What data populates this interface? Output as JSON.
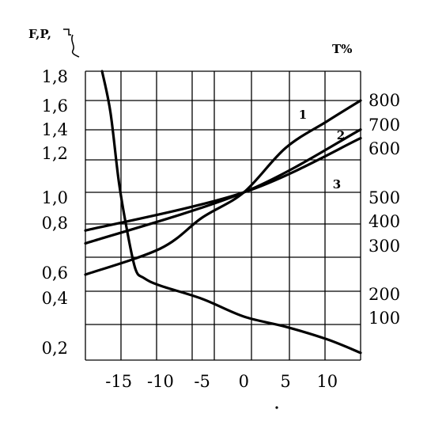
{
  "chart_data": {
    "type": "line",
    "left_axis_title": "F,P,",
    "right_axis_title": "T%",
    "x_ticks": [
      "-15",
      "-10",
      "-5",
      "0",
      "5",
      "10"
    ],
    "x_tick_values": [
      -15,
      -10,
      -5,
      0,
      5,
      10
    ],
    "left_ticks": [
      "1,8",
      "1,6",
      "1,4",
      "1,2",
      "1,0",
      "0,8",
      "0,6",
      "0,4",
      "0,2"
    ],
    "right_ticks": [
      "800",
      "700",
      "600",
      "500",
      "400",
      "300",
      "200",
      "100"
    ],
    "xlim": [
      -19,
      14
    ],
    "grid": true,
    "series": [
      {
        "name": "1",
        "x": [
          -19,
          -10,
          -5,
          0,
          5,
          10,
          14
        ],
        "y": [
          0.55,
          0.68,
          0.8,
          1.0,
          1.2,
          1.42,
          1.6
        ]
      },
      {
        "name": "2",
        "x": [
          -19,
          0,
          14
        ],
        "y": [
          0.7,
          1.0,
          1.35
        ]
      },
      {
        "name": "3",
        "x": [
          -19,
          0,
          14
        ],
        "y": [
          0.75,
          1.0,
          1.28
        ]
      },
      {
        "name": "",
        "x": [
          -17,
          -16,
          -15,
          -14,
          -13,
          -12,
          -10,
          -5,
          0,
          5,
          10,
          14
        ],
        "y": [
          1.8,
          1.5,
          1.05,
          0.75,
          0.6,
          0.52,
          0.45,
          0.37,
          0.3,
          0.26,
          0.21,
          0.17
        ]
      }
    ]
  }
}
